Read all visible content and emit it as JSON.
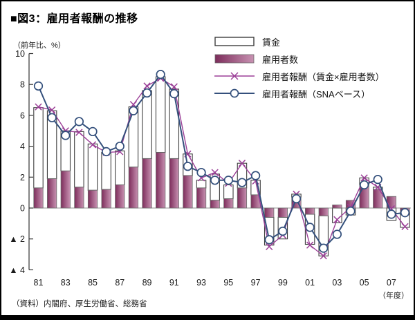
{
  "title": "■図3：雇用者報酬の推移",
  "y_axis_unit": "（前年比、%）",
  "x_axis_unit": "（年度）",
  "source": "（資料）内閣府、厚生労働省、総務省",
  "legend": [
    {
      "label": "賃金",
      "type": "bar-white"
    },
    {
      "label": "雇用者数",
      "type": "bar-gradient"
    },
    {
      "label": "雇用者報酬（賃金×雇用者数）",
      "type": "line-x"
    },
    {
      "label": "雇用者報酬（SNAベース）",
      "type": "line-circle"
    }
  ],
  "colors": {
    "emp_bar_dark": "#7d2d5b",
    "emp_bar_light": "#c892b2",
    "wage_bar_fill": "#ffffff",
    "bar_border": "#3d3d3d",
    "emp_bar_border": "#6b6b6b",
    "x_line": "#9b3f97",
    "sna_line": "#34507c",
    "axis": "#333333",
    "zero_line": "#909090",
    "text": "#1a1a1a"
  },
  "chart_data": {
    "type": "bar",
    "subtype": "stacked-bar-with-lines",
    "title": "雇用者報酬の推移",
    "ylabel": "前年比、%",
    "xlabel": "年度",
    "ylim": [
      -4,
      10
    ],
    "grid": false,
    "legend_position": "top-right",
    "y_tick_values": [
      10,
      8,
      6,
      4,
      2,
      0,
      -2,
      -4
    ],
    "y_tick_labels": [
      "10",
      "8",
      "6",
      "4",
      "2",
      "0",
      "▲ 2",
      "▲ 4"
    ],
    "x_tick_labels": [
      "81",
      "83",
      "85",
      "87",
      "89",
      "91",
      "93",
      "95",
      "97",
      "99",
      "01",
      "03",
      "05",
      "07"
    ],
    "categories": [
      "81",
      "82",
      "83",
      "84",
      "85",
      "86",
      "87",
      "88",
      "89",
      "90",
      "91",
      "92",
      "93",
      "94",
      "95",
      "96",
      "97",
      "98",
      "99",
      "00",
      "01",
      "02",
      "03",
      "04",
      "05",
      "06",
      "07",
      "08"
    ],
    "series": [
      {
        "name": "賃金",
        "type": "bar-stacked",
        "values": [
          5.2,
          4.4,
          2.6,
          3.6,
          3.0,
          2.4,
          2.2,
          3.9,
          4.4,
          4.9,
          4.5,
          1.4,
          0.5,
          1.7,
          0.9,
          1.6,
          0.95,
          -1.8,
          -1.4,
          0.2,
          -1.95,
          -2.6,
          -0.95,
          -0.45,
          0.45,
          0.15,
          -0.8,
          -0.95
        ]
      },
      {
        "name": "雇用者数",
        "type": "bar-stacked",
        "values": [
          1.3,
          1.9,
          2.4,
          1.35,
          1.15,
          1.2,
          1.5,
          2.65,
          3.2,
          3.6,
          3.2,
          2.1,
          1.3,
          0.5,
          0.6,
          1.3,
          0.85,
          -0.6,
          -0.6,
          0.7,
          -0.4,
          -0.5,
          0.2,
          0.5,
          1.5,
          1.2,
          0.75,
          -0.3
        ]
      },
      {
        "name": "雇用者報酬（賃金×雇用者数）",
        "type": "line",
        "marker": "x",
        "values": [
          6.55,
          6.35,
          5.0,
          4.9,
          4.1,
          3.6,
          3.65,
          6.7,
          7.9,
          8.4,
          7.85,
          3.5,
          1.95,
          2.3,
          1.6,
          2.9,
          1.75,
          -2.5,
          -1.75,
          0.9,
          -2.4,
          -3.1,
          -0.75,
          0.05,
          1.95,
          1.35,
          -0.05,
          -1.2
        ]
      },
      {
        "name": "雇用者報酬（SNAベース）",
        "type": "line",
        "marker": "circle",
        "values": [
          7.9,
          5.85,
          4.7,
          5.6,
          4.95,
          3.65,
          4.0,
          6.3,
          7.45,
          8.65,
          7.4,
          2.7,
          2.3,
          1.8,
          1.8,
          1.65,
          2.1,
          -2.05,
          -1.5,
          0.6,
          -1.25,
          -2.6,
          -1.7,
          -0.2,
          1.5,
          1.85,
          -0.4,
          -0.3
        ]
      }
    ]
  }
}
